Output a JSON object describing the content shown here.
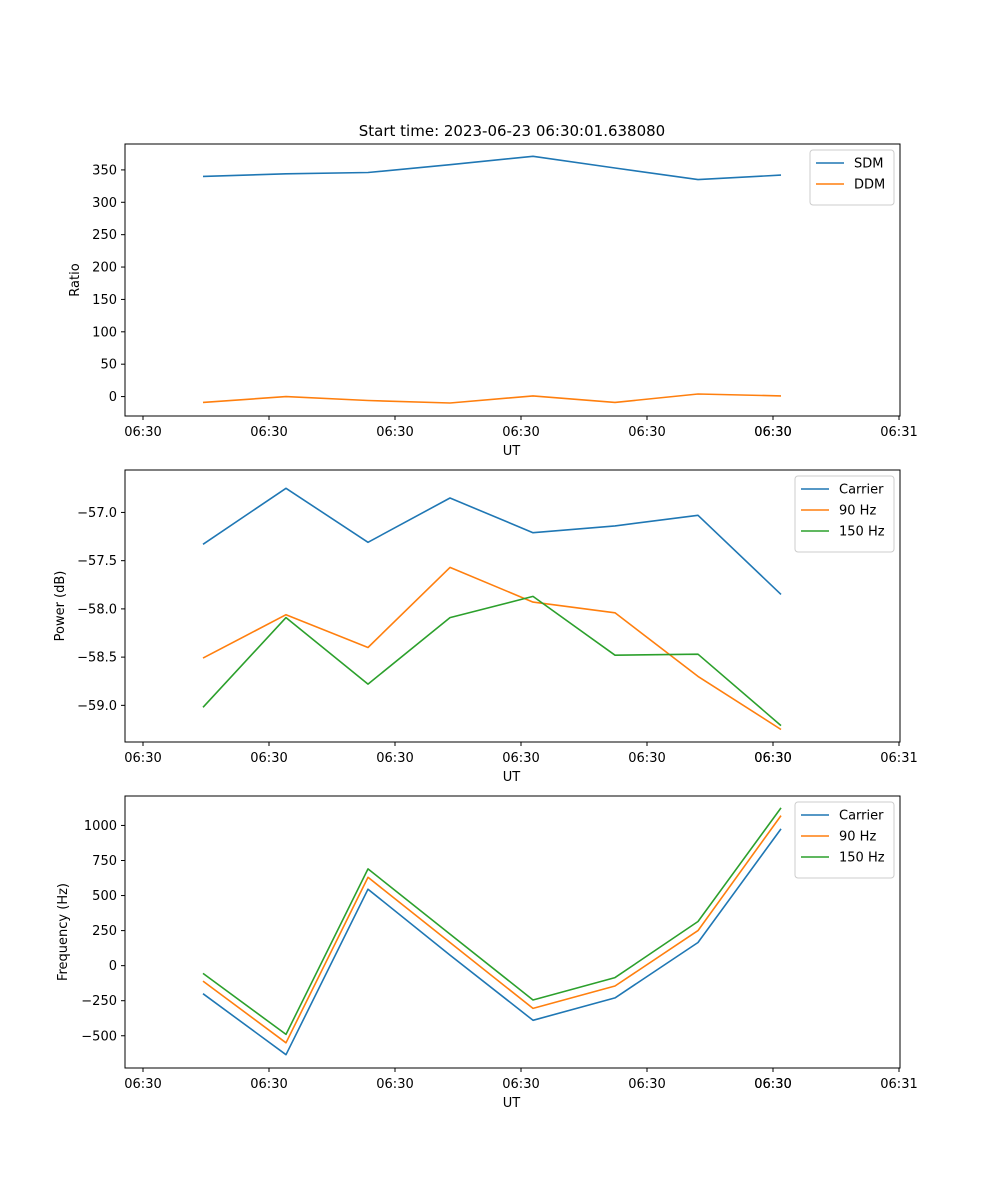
{
  "title": "Start time: 2023-06-23 06:30:01.638080",
  "chart_data": [
    {
      "type": "line",
      "xlabel": "UT",
      "ylabel": "Ratio",
      "x_tick_labels": [
        "06:30",
        "06:30",
        "06:30",
        "06:30",
        "06:30",
        "06:30",
        "06:30",
        "06:31"
      ],
      "y_ticks": [
        0,
        50,
        100,
        150,
        200,
        250,
        300,
        350
      ],
      "ylim": [
        -30,
        390
      ],
      "legend_position": "top-right",
      "series": [
        {
          "name": "SDM",
          "color": "#1f77b4",
          "values": [
            340,
            344,
            346,
            358,
            371,
            353,
            335,
            342
          ]
        },
        {
          "name": "DDM",
          "color": "#ff7f0e",
          "values": [
            -9,
            0,
            -6,
            -10,
            1,
            -9,
            4,
            1
          ]
        }
      ]
    },
    {
      "type": "line",
      "xlabel": "UT",
      "ylabel": "Power (dB)",
      "x_tick_labels": [
        "06:30",
        "06:30",
        "06:30",
        "06:30",
        "06:30",
        "06:30",
        "06:30",
        "06:31"
      ],
      "y_ticks": [
        -57.0,
        -57.5,
        -58.0,
        -58.5,
        -59.0
      ],
      "y_tick_labels": [
        "−57.0",
        "−57.5",
        "−58.0",
        "−58.5",
        "−59.0"
      ],
      "ylim": [
        -59.38,
        -56.56
      ],
      "legend_position": "top-right",
      "series": [
        {
          "name": "Carrier",
          "color": "#1f77b4",
          "values": [
            -57.33,
            -56.75,
            -57.31,
            -56.85,
            -57.21,
            -57.14,
            -57.03,
            -57.85
          ]
        },
        {
          "name": "90 Hz",
          "color": "#ff7f0e",
          "values": [
            -58.51,
            -58.06,
            -58.4,
            -57.57,
            -57.93,
            -58.04,
            -58.7,
            -59.25
          ]
        },
        {
          "name": "150 Hz",
          "color": "#2ca02c",
          "values": [
            -59.02,
            -58.09,
            -58.78,
            -58.09,
            -57.87,
            -58.48,
            -58.47,
            -59.21
          ]
        }
      ]
    },
    {
      "type": "line",
      "xlabel": "UT",
      "ylabel": "Frequency (Hz)",
      "x_tick_labels": [
        "06:30",
        "06:30",
        "06:30",
        "06:30",
        "06:30",
        "06:30",
        "06:30",
        "06:31"
      ],
      "y_ticks": [
        1000,
        750,
        500,
        250,
        0,
        -250,
        -500
      ],
      "y_tick_labels": [
        "1000",
        "750",
        "500",
        "250",
        "0",
        "−250",
        "−500"
      ],
      "ylim": [
        -730,
        1210
      ],
      "legend_position": "top-right",
      "series": [
        {
          "name": "Carrier",
          "color": "#1f77b4",
          "values": [
            -200,
            -635,
            545,
            75,
            -390,
            -230,
            165,
            975
          ]
        },
        {
          "name": "90 Hz",
          "color": "#ff7f0e",
          "values": [
            -110,
            -550,
            630,
            165,
            -305,
            -145,
            250,
            1070
          ]
        },
        {
          "name": "150 Hz",
          "color": "#2ca02c",
          "values": [
            -55,
            -490,
            690,
            225,
            -245,
            -85,
            315,
            1125
          ]
        }
      ]
    }
  ]
}
